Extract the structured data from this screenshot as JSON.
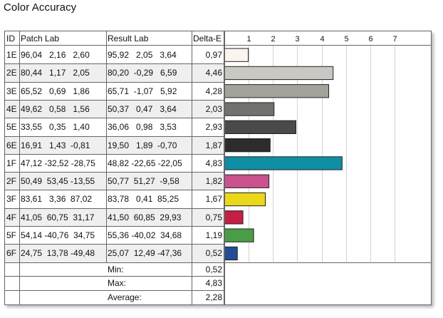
{
  "page": {
    "title": "Color Accuracy"
  },
  "table": {
    "headers": {
      "id": "ID",
      "patch": "Patch Lab",
      "result": "Result Lab",
      "delta": "Delta-E"
    },
    "rows": [
      {
        "id": "1E",
        "patch": "96,04   2,16   2,60",
        "result": "95,92   2,05   3,64",
        "delta": "0,97"
      },
      {
        "id": "2E",
        "patch": "80,44   1,17   2,05",
        "result": "80,20  -0,29   6,59",
        "delta": "4,46"
      },
      {
        "id": "3E",
        "patch": "65,52   0,69   1,86",
        "result": "65,71  -1,07   5,92",
        "delta": "4,28"
      },
      {
        "id": "4E",
        "patch": "49,62   0,58   1,56",
        "result": "50,37   0,47   3,64",
        "delta": "2,03"
      },
      {
        "id": "5E",
        "patch": "33,55   0,35   1,40",
        "result": "36,06   0,98   3,53",
        "delta": "2,93"
      },
      {
        "id": "6E",
        "patch": "16,91   1,43  -0,81",
        "result": "19,50   1,89  -0,70",
        "delta": "1,87"
      },
      {
        "id": "1F",
        "patch": "47,12 -32,52 -28,75",
        "result": "48,82 -22,65 -22,05",
        "delta": "4,83"
      },
      {
        "id": "2F",
        "patch": "50,49  53,45 -13,55",
        "result": "50,77  51,27  -9,58",
        "delta": "1,82"
      },
      {
        "id": "3F",
        "patch": "83,61   3,36  87,02",
        "result": "83,78   0,41  85,25",
        "delta": "1,67"
      },
      {
        "id": "4F",
        "patch": "41,05  60,75  31,17",
        "result": "41,50  60,85  29,93",
        "delta": "0,75"
      },
      {
        "id": "5F",
        "patch": "54,14 -40,76  34,75",
        "result": "55,36 -40,02  34,68",
        "delta": "1,19"
      },
      {
        "id": "6F",
        "patch": "24,75  13,78 -49,48",
        "result": "25,07  12,49 -47,36",
        "delta": "0,52"
      }
    ],
    "summary": [
      {
        "label": "Min:",
        "value": "0,52"
      },
      {
        "label": "Max:",
        "value": "4,83"
      },
      {
        "label": "Average:",
        "value": "2,28"
      }
    ]
  },
  "chart_data": {
    "type": "bar",
    "orientation": "horizontal",
    "categories": [
      "1E",
      "2E",
      "3E",
      "4E",
      "5E",
      "6E",
      "1F",
      "2F",
      "3F",
      "4F",
      "5F",
      "6F"
    ],
    "values": [
      0.97,
      4.46,
      4.28,
      2.03,
      2.93,
      1.87,
      4.83,
      1.82,
      1.67,
      0.75,
      1.19,
      0.52
    ],
    "colors": [
      "#fbf5f0",
      "#c9c8c2",
      "#a3a39c",
      "#727170",
      "#4a4a48",
      "#2c2c2c",
      "#0f8ea5",
      "#c9528f",
      "#ecd81a",
      "#c61f44",
      "#4a9d46",
      "#264b96"
    ],
    "xticks": [
      "1",
      "2",
      "3",
      "4",
      "5",
      "6",
      "7"
    ],
    "xlim": [
      0,
      8
    ],
    "grid": true,
    "title": "Color Accuracy",
    "xlabel": "",
    "ylabel": ""
  }
}
